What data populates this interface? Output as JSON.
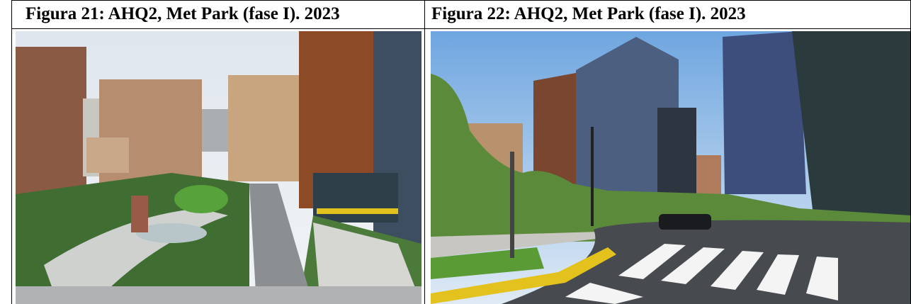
{
  "table": {
    "rows": [
      [
        "Figura 21: AHQ2, Met Park (fase I). 2023",
        "Figura 22: AHQ2, Met Park (fase I). 2023"
      ]
    ]
  }
}
